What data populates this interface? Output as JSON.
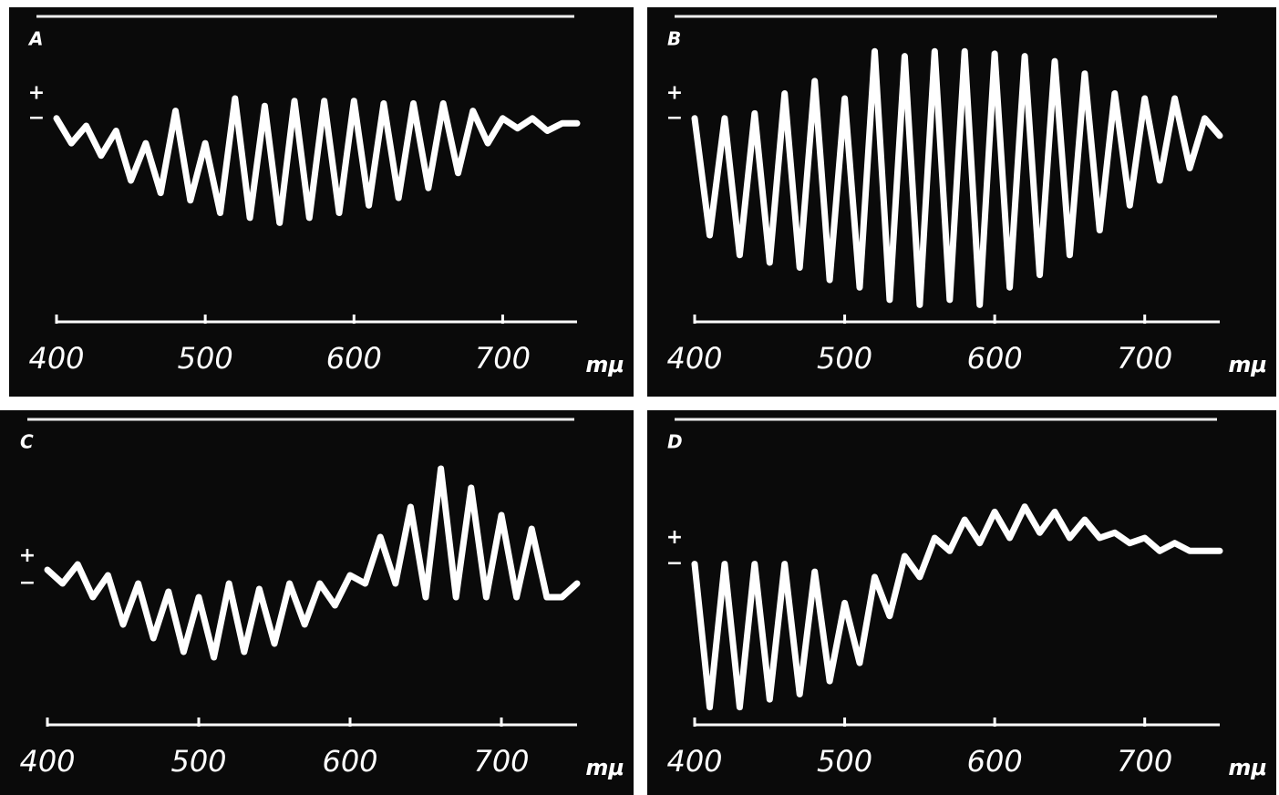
{
  "chart_data": [
    {
      "type": "line",
      "title": "A",
      "xlabel": "mμ",
      "x": [
        400,
        410,
        420,
        430,
        440,
        450,
        460,
        470,
        480,
        490,
        500,
        510,
        520,
        530,
        540,
        550,
        560,
        570,
        580,
        590,
        600,
        610,
        620,
        630,
        640,
        650,
        660,
        670,
        680,
        690,
        700,
        710,
        720,
        730,
        740,
        750
      ],
      "series": [
        {
          "color": "#ffffff",
          "values": [
            0,
            -1,
            -0.3,
            -1.5,
            -0.5,
            -2.5,
            -1,
            -3,
            0.3,
            -3.3,
            -1,
            -3.8,
            0.8,
            -4,
            0.5,
            -4.2,
            0.7,
            -4,
            0.7,
            -3.8,
            0.7,
            -3.5,
            0.6,
            -3.2,
            0.6,
            -2.8,
            0.6,
            -2.2,
            0.3,
            -1,
            0,
            -0.4,
            0,
            -0.5,
            -0.2,
            -0.2
          ]
        }
      ],
      "xlim": [
        400,
        750
      ],
      "xticks": [
        400,
        500,
        600,
        700
      ],
      "ylim": [
        -8,
        3
      ],
      "yticks": [
        {
          "value": 1,
          "label": "+"
        },
        {
          "value": 0,
          "label": "−"
        }
      ]
    },
    {
      "type": "line",
      "title": "B",
      "xlabel": "mμ",
      "x": [
        400,
        410,
        420,
        430,
        440,
        450,
        460,
        470,
        480,
        490,
        500,
        510,
        520,
        530,
        540,
        550,
        560,
        570,
        580,
        590,
        600,
        610,
        620,
        630,
        640,
        650,
        660,
        670,
        680,
        690,
        700,
        710,
        720,
        730,
        740,
        750
      ],
      "series": [
        {
          "color": "#ffffff",
          "values": [
            0,
            -4.7,
            0,
            -5.5,
            0.2,
            -5.8,
            1,
            -6,
            1.5,
            -6.5,
            0.8,
            -6.8,
            2.7,
            -7.3,
            2.5,
            -7.5,
            2.7,
            -7.3,
            2.7,
            -7.5,
            2.6,
            -6.8,
            2.5,
            -6.3,
            2.3,
            -5.5,
            1.8,
            -4.5,
            1,
            -3.5,
            0.8,
            -2.5,
            0.8,
            -2,
            0,
            -0.7
          ]
        }
      ],
      "xlim": [
        400,
        750
      ],
      "xticks": [
        400,
        500,
        600,
        700
      ],
      "ylim": [
        -8,
        3
      ],
      "yticks": [
        {
          "value": 1,
          "label": "+"
        },
        {
          "value": 0,
          "label": "−"
        }
      ]
    },
    {
      "type": "line",
      "title": "C",
      "xlabel": "mμ",
      "x": [
        400,
        410,
        420,
        430,
        440,
        450,
        460,
        470,
        480,
        490,
        500,
        510,
        520,
        530,
        540,
        550,
        560,
        570,
        580,
        590,
        600,
        610,
        620,
        630,
        640,
        650,
        660,
        670,
        680,
        690,
        700,
        710,
        720,
        730,
        740,
        750
      ],
      "series": [
        {
          "color": "#ffffff",
          "values": [
            0.5,
            0,
            0.7,
            -0.5,
            0.3,
            -1.5,
            0,
            -2,
            -0.3,
            -2.5,
            -0.5,
            -2.7,
            0,
            -2.5,
            -0.2,
            -2.2,
            0,
            -1.5,
            0,
            -0.8,
            0.3,
            0,
            1.7,
            0,
            2.8,
            -0.5,
            4.2,
            -0.5,
            3.5,
            -0.5,
            2.5,
            -0.5,
            2,
            -0.5,
            -0.5,
            0
          ]
        }
      ],
      "xlim": [
        400,
        750
      ],
      "xticks": [
        400,
        500,
        600,
        700
      ],
      "ylim": [
        -5,
        5
      ],
      "yticks": [
        {
          "value": 1,
          "label": "+"
        },
        {
          "value": 0,
          "label": "−"
        }
      ]
    },
    {
      "type": "line",
      "title": "D",
      "xlabel": "mμ",
      "x": [
        400,
        410,
        420,
        430,
        440,
        450,
        460,
        470,
        480,
        490,
        500,
        510,
        520,
        530,
        540,
        550,
        560,
        570,
        580,
        590,
        600,
        610,
        620,
        630,
        640,
        650,
        660,
        670,
        680,
        690,
        700,
        710,
        720,
        730,
        740,
        750
      ],
      "series": [
        {
          "color": "#ffffff",
          "values": [
            0,
            -5.5,
            0,
            -5.5,
            0,
            -5.2,
            0,
            -5,
            -0.3,
            -4.5,
            -1.5,
            -3.8,
            -0.5,
            -2,
            0.3,
            -0.5,
            1,
            0.5,
            1.7,
            0.8,
            2,
            1,
            2.2,
            1.2,
            2,
            1,
            1.7,
            1,
            1.2,
            0.8,
            1,
            0.5,
            0.8,
            0.5,
            0.5,
            0.5
          ]
        }
      ],
      "xlim": [
        400,
        750
      ],
      "xticks": [
        400,
        500,
        600,
        700
      ],
      "ylim": [
        -6,
        4.5
      ],
      "yticks": [
        {
          "value": 1,
          "label": "+"
        },
        {
          "value": 0,
          "label": "−"
        }
      ]
    }
  ]
}
